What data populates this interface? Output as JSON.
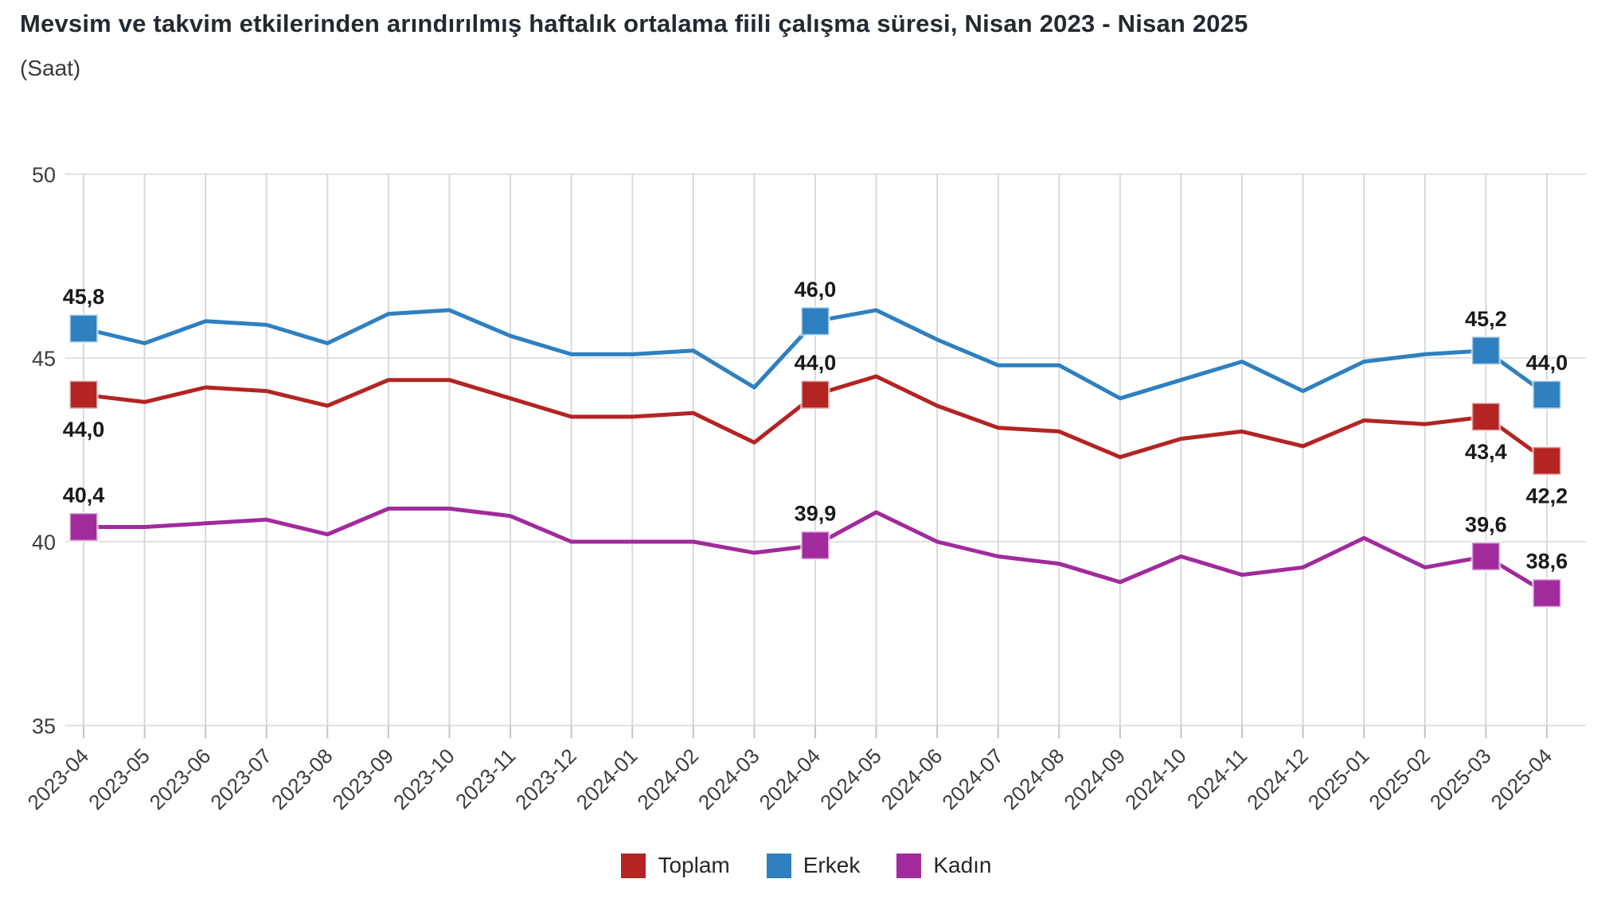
{
  "title": "Mevsim ve takvim etkilerinden arındırılmış haftalık ortalama fiili çalışma süresi, Nisan 2023 - Nisan 2025",
  "subtitle": "(Saat)",
  "colors": {
    "toplam": "#b32422",
    "erkek": "#2e80c0",
    "kadin": "#a12a9c",
    "grid_horizontal": "#e2e2e2",
    "grid_vertical": "#d9d9d9",
    "tick": "#c4c4c4",
    "axis_text": "#3d3d3d",
    "data_label": "#1a1a1a"
  },
  "legend": [
    {
      "label": "Toplam",
      "color": "#b32422"
    },
    {
      "label": "Erkek",
      "color": "#2e80c0"
    },
    {
      "label": "Kadın",
      "color": "#a12a9c"
    }
  ],
  "chart_data": {
    "type": "line",
    "title": "Mevsim ve takvim etkilerinden arındırılmış haftalık ortalama fiili çalışma süresi, Nisan 2023 - Nisan 2025",
    "subtitle": "(Saat)",
    "x": [
      "2023-04",
      "2023-05",
      "2023-06",
      "2023-07",
      "2023-08",
      "2023-09",
      "2023-10",
      "2023-11",
      "2023-12",
      "2024-01",
      "2024-02",
      "2024-03",
      "2024-04",
      "2024-05",
      "2024-06",
      "2024-07",
      "2024-08",
      "2024-09",
      "2024-10",
      "2024-11",
      "2024-12",
      "2025-01",
      "2025-02",
      "2025-03",
      "2025-04"
    ],
    "series": [
      {
        "name": "Toplam",
        "color": "#b32422",
        "values": [
          44.0,
          43.8,
          44.2,
          44.1,
          43.7,
          44.4,
          44.4,
          43.9,
          43.4,
          43.4,
          43.5,
          42.7,
          44.0,
          44.5,
          43.7,
          43.1,
          43.0,
          42.3,
          42.8,
          43.0,
          42.6,
          43.3,
          43.2,
          43.4,
          42.2
        ]
      },
      {
        "name": "Erkek",
        "color": "#2e80c0",
        "values": [
          45.8,
          45.4,
          46.0,
          45.9,
          45.4,
          46.2,
          46.3,
          45.6,
          45.1,
          45.1,
          45.2,
          44.2,
          46.0,
          46.3,
          45.5,
          44.8,
          44.8,
          43.9,
          44.4,
          44.9,
          44.1,
          44.9,
          45.1,
          45.2,
          44.0
        ]
      },
      {
        "name": "Kadın",
        "color": "#a12a9c",
        "values": [
          40.4,
          40.4,
          40.5,
          40.6,
          40.2,
          40.9,
          40.9,
          40.7,
          40.0,
          40.0,
          40.0,
          39.7,
          39.9,
          40.8,
          40.0,
          39.6,
          39.4,
          38.9,
          39.6,
          39.1,
          39.3,
          40.1,
          39.3,
          39.6,
          38.6
        ]
      }
    ],
    "ylim": [
      35,
      50
    ],
    "yticks": [
      35,
      40,
      45,
      50
    ],
    "grid": true,
    "legend_position": "bottom",
    "annotations": [
      {
        "series": "Erkek",
        "x": "2023-04",
        "label": "45,8",
        "placement": "above"
      },
      {
        "series": "Toplam",
        "x": "2023-04",
        "label": "44,0",
        "placement": "below"
      },
      {
        "series": "Kadın",
        "x": "2023-04",
        "label": "40,4",
        "placement": "above"
      },
      {
        "series": "Erkek",
        "x": "2024-04",
        "label": "46,0",
        "placement": "above"
      },
      {
        "series": "Toplam",
        "x": "2024-04",
        "label": "44,0",
        "placement": "above"
      },
      {
        "series": "Kadın",
        "x": "2024-04",
        "label": "39,9",
        "placement": "above"
      },
      {
        "series": "Erkek",
        "x": "2025-03",
        "label": "45,2",
        "placement": "above"
      },
      {
        "series": "Toplam",
        "x": "2025-03",
        "label": "43,4",
        "placement": "below"
      },
      {
        "series": "Kadın",
        "x": "2025-03",
        "label": "39,6",
        "placement": "above"
      },
      {
        "series": "Erkek",
        "x": "2025-04",
        "label": "44,0",
        "placement": "above"
      },
      {
        "series": "Toplam",
        "x": "2025-04",
        "label": "42,2",
        "placement": "below"
      },
      {
        "series": "Kadın",
        "x": "2025-04",
        "label": "38,6",
        "placement": "above"
      }
    ]
  }
}
